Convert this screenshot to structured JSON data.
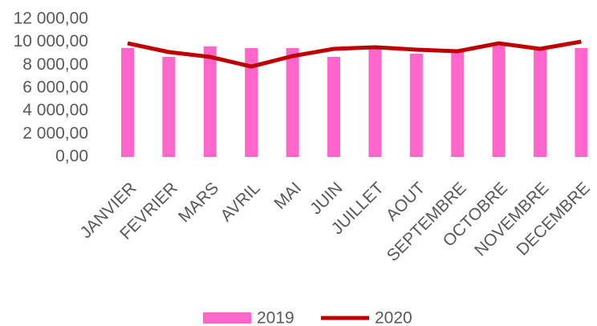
{
  "chart_data": {
    "type": "bar_line",
    "categories": [
      "JANVIER",
      "FEVRIER",
      "MARS",
      "AVRIL",
      "MAI",
      "JUIN",
      "JUILLET",
      "AOUT",
      "SEPTEMBRE",
      "OCTOBRE",
      "NOVEMBRE",
      "DECEMBRE"
    ],
    "series": [
      {
        "name": "2019",
        "type": "bar",
        "color": "#ff66cc",
        "values": [
          9500,
          8720,
          9630,
          9490,
          9490,
          8720,
          9560,
          9000,
          9140,
          9700,
          9490,
          9490
        ]
      },
      {
        "name": "2020",
        "type": "line",
        "color": "#c00000",
        "values": [
          9900,
          9140,
          8720,
          7880,
          8790,
          9420,
          9560,
          9350,
          9210,
          9900,
          9420,
          10050
        ]
      }
    ],
    "ylim": [
      0,
      12000
    ],
    "yticks": [
      {
        "value": 0,
        "label": "0,00"
      },
      {
        "value": 2000,
        "label": "2 000,00"
      },
      {
        "value": 4000,
        "label": "4 000,00"
      },
      {
        "value": 6000,
        "label": "6 000,00"
      },
      {
        "value": 8000,
        "label": "8 000,00"
      },
      {
        "value": 10000,
        "label": "10 000,00"
      },
      {
        "value": 12000,
        "label": "12 000,00"
      }
    ],
    "grid": false,
    "legend": "bottom"
  }
}
